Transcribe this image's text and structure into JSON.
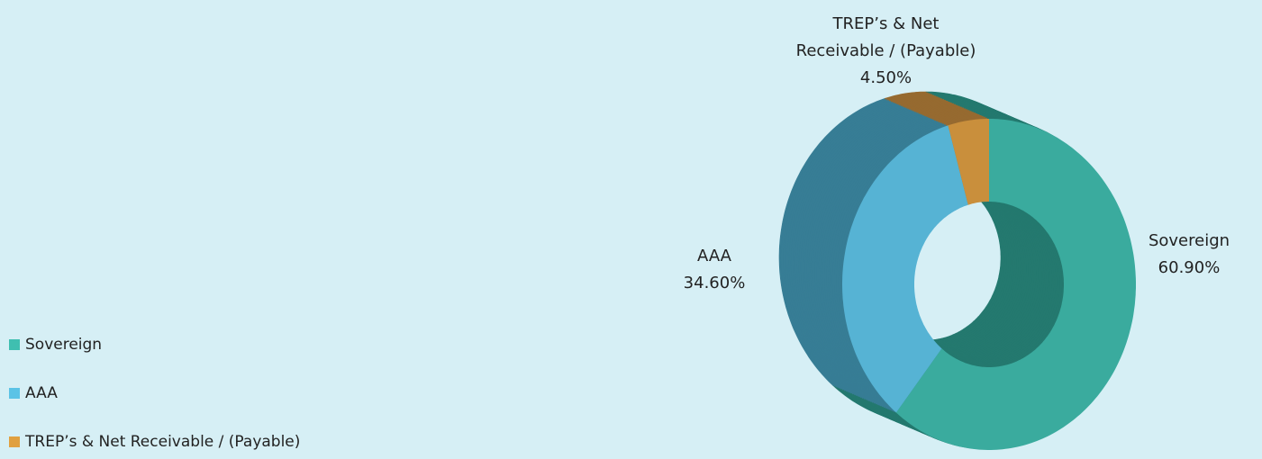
{
  "chart_data": {
    "type": "donut3d",
    "categories": [
      "Sovereign",
      "AAA",
      "TREP’s & Net Receivable / (Payable)"
    ],
    "values": [
      60.9,
      34.6,
      4.5
    ],
    "value_labels": [
      "60.90%",
      "34.60%",
      "4.50%"
    ],
    "colors": [
      "#3aab9e",
      "#56b3d4",
      "#c98f3c"
    ],
    "depth_colors": [
      "#24796f",
      "#377d95",
      "#966a30"
    ],
    "legend_colors": [
      "#3fbfb0",
      "#5bc3e6",
      "#e0a040"
    ],
    "legend": "bottom-left"
  }
}
